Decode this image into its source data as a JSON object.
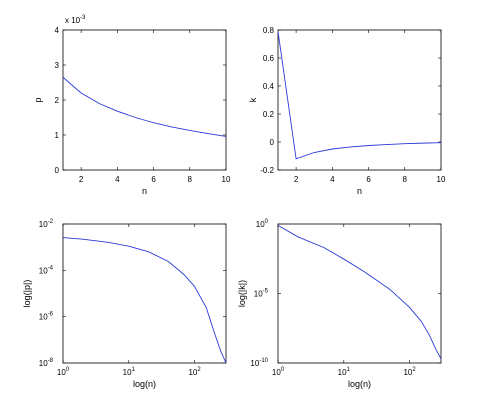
{
  "chart_data": [
    {
      "type": "line",
      "xlabel": "n",
      "ylabel": "p",
      "xscale": "linear",
      "yscale": "linear",
      "xlim": [
        1,
        10
      ],
      "ylim": [
        0,
        4
      ],
      "xticks": [
        2,
        4,
        6,
        8,
        10
      ],
      "yticks": [
        0,
        1,
        2,
        3,
        4
      ],
      "yexponent": "x 10",
      "yexponent_power": "-3",
      "series": [
        {
          "x": [
            1,
            2,
            3,
            4,
            5,
            6,
            7,
            8,
            9,
            10
          ],
          "y": [
            2.65,
            2.2,
            1.9,
            1.68,
            1.5,
            1.35,
            1.23,
            1.13,
            1.04,
            0.96
          ]
        }
      ]
    },
    {
      "type": "line",
      "xlabel": "n",
      "ylabel": "k",
      "xscale": "linear",
      "yscale": "linear",
      "xlim": [
        1,
        10
      ],
      "ylim": [
        -0.2,
        0.8
      ],
      "xticks": [
        2,
        4,
        6,
        8,
        10
      ],
      "yticks": [
        -0.2,
        0,
        0.2,
        0.4,
        0.6,
        0.8
      ],
      "series": [
        {
          "x": [
            1,
            2,
            3,
            4,
            5,
            6,
            7,
            8,
            9,
            10
          ],
          "y": [
            0.79,
            -0.12,
            -0.075,
            -0.05,
            -0.035,
            -0.025,
            -0.018,
            -0.012,
            -0.008,
            -0.005
          ]
        }
      ]
    },
    {
      "type": "line",
      "xlabel": "log(n)",
      "ylabel": "log(|p|)",
      "xscale": "log",
      "yscale": "log",
      "xlim": [
        1,
        300
      ],
      "ylim": [
        1e-08,
        0.01
      ],
      "xticks": [
        1,
        10,
        100
      ],
      "xticklabels": [
        {
          "base": "10",
          "exp": "0"
        },
        {
          "base": "10",
          "exp": "1"
        },
        {
          "base": "10",
          "exp": "2"
        }
      ],
      "yticks": [
        1e-08,
        1e-06,
        0.0001,
        0.01
      ],
      "yticklabels": [
        {
          "base": "10",
          "exp": "-8"
        },
        {
          "base": "10",
          "exp": "-6"
        },
        {
          "base": "10",
          "exp": "-4"
        },
        {
          "base": "10",
          "exp": "-2"
        }
      ],
      "series": [
        {
          "x": [
            1,
            2,
            5,
            10,
            20,
            40,
            70,
            100,
            150,
            200,
            250,
            300
          ],
          "y": [
            0.0026,
            0.0022,
            0.0016,
            0.0011,
            0.00063,
            0.00024,
            6.3e-05,
            2e-05,
            2.5e-06,
            2e-07,
            3.2e-08,
            1e-08
          ]
        }
      ]
    },
    {
      "type": "line",
      "xlabel": "log(n)",
      "ylabel": "log(|k|)",
      "xscale": "log",
      "yscale": "log",
      "xlim": [
        1,
        300
      ],
      "ylim": [
        1e-10,
        1
      ],
      "xticks": [
        1,
        10,
        100
      ],
      "xticklabels": [
        {
          "base": "10",
          "exp": "0"
        },
        {
          "base": "10",
          "exp": "1"
        },
        {
          "base": "10",
          "exp": "2"
        }
      ],
      "yticks": [
        1e-10,
        1e-05,
        1
      ],
      "yticklabels": [
        {
          "base": "10",
          "exp": "-10"
        },
        {
          "base": "10",
          "exp": "-5"
        },
        {
          "base": "10",
          "exp": "0"
        }
      ],
      "series": [
        {
          "x": [
            1,
            2,
            5,
            10,
            20,
            50,
            100,
            150,
            200,
            250,
            300
          ],
          "y": [
            0.79,
            0.12,
            0.02,
            0.003,
            0.0004,
            2e-05,
            1e-06,
            1e-07,
            1e-08,
            1e-09,
            2e-10
          ]
        }
      ]
    }
  ]
}
